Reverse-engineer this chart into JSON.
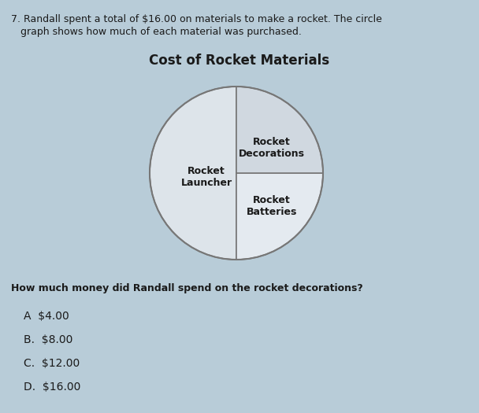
{
  "title": "Cost of Rocket Materials",
  "question_header_line1": "7. Randall spent a total of $16.00 on materials to make a rocket. The circle",
  "question_header_line2": "   graph shows how much of each material was purchased.",
  "question": "How much money did Randall spend on the rocket decorations?",
  "slices": [
    {
      "label": "Rocket\nLauncher",
      "pct": 50,
      "color": "#dde4ea",
      "startangle": 90,
      "endangle": 270
    },
    {
      "label": "Rocket\nDecorations",
      "pct": 25,
      "color": "#e8ecf0",
      "startangle": 90,
      "endangle": 0
    },
    {
      "label": "Rocket\nBatteries",
      "pct": 25,
      "color": "#d0d8e0",
      "startangle": 0,
      "endangle": -90
    }
  ],
  "choices": [
    {
      "letter": "A",
      "text": "$4.00"
    },
    {
      "letter": "B.",
      "text": "$8.00"
    },
    {
      "letter": "C.",
      "text": "$12.00"
    },
    {
      "letter": "D.",
      "text": "$16.00"
    }
  ],
  "bg_color": "#b8ccd8",
  "pie_face_color": "#dde4ea",
  "pie_edge_color": "#777777",
  "text_color": "#1a1a1a",
  "title_fontsize": 12,
  "label_fontsize": 9,
  "header_fontsize": 9,
  "question_fontsize": 9,
  "choice_fontsize": 10
}
